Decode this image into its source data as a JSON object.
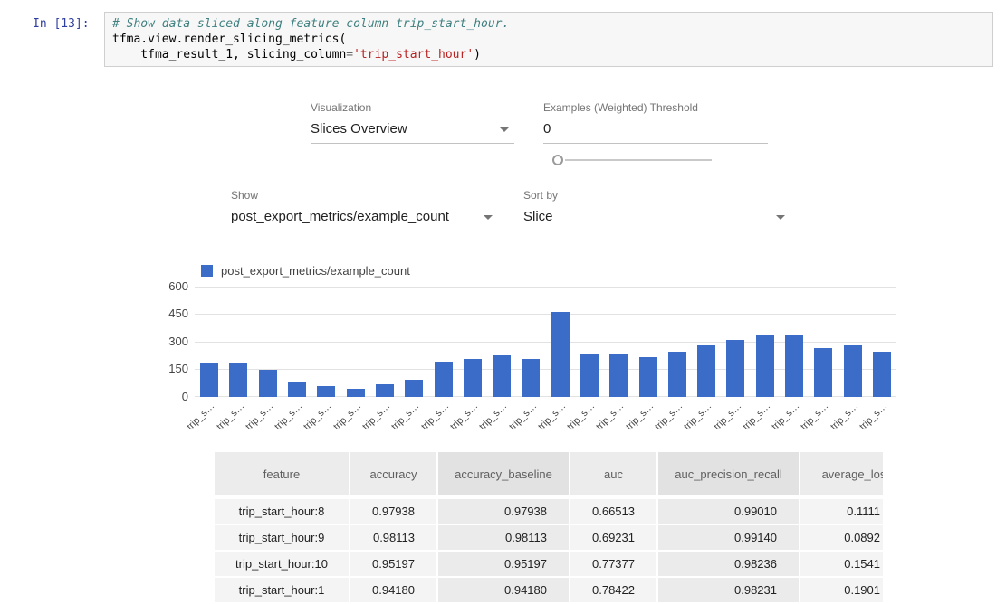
{
  "notebook": {
    "prompt": "In [13]:",
    "code": {
      "line1_comment": "# Show data sliced along feature column trip_start_hour.",
      "line2": "tfma.view.render_slicing_metrics(",
      "line3_pre": "    tfma_result_1, slicing_column",
      "line3_op": "=",
      "line3_string": "'trip_start_hour'",
      "line3_close": ")"
    }
  },
  "controls": {
    "visualization": {
      "label": "Visualization",
      "value": "Slices Overview"
    },
    "threshold": {
      "label": "Examples (Weighted) Threshold",
      "value": "0"
    },
    "show": {
      "label": "Show",
      "value": "post_export_metrics/example_count"
    },
    "sort": {
      "label": "Sort by",
      "value": "Slice"
    }
  },
  "chart_data": {
    "type": "bar",
    "legend": "post_export_metrics/example_count",
    "legend_position": "top-left",
    "bar_color": "#3b6cc7",
    "grid": true,
    "ylim": [
      0,
      600
    ],
    "yticks": [
      0,
      150,
      300,
      450,
      600
    ],
    "categories": [
      "trip_s…",
      "trip_s…",
      "trip_s…",
      "trip_s…",
      "trip_s…",
      "trip_s…",
      "trip_s…",
      "trip_s…",
      "trip_s…",
      "trip_s…",
      "trip_s…",
      "trip_s…",
      "trip_s…",
      "trip_s…",
      "trip_s…",
      "trip_s…",
      "trip_s…",
      "trip_s…",
      "trip_s…",
      "trip_s…",
      "trip_s…",
      "trip_s…",
      "trip_s…",
      "trip_s…"
    ],
    "values": [
      188,
      188,
      147,
      84,
      57,
      45,
      70,
      91,
      190,
      205,
      225,
      205,
      462,
      235,
      230,
      218,
      245,
      280,
      308,
      340,
      338,
      268,
      278,
      248
    ],
    "title": "",
    "xlabel": "",
    "ylabel": ""
  },
  "table": {
    "headers": [
      "feature",
      "accuracy",
      "accuracy_baseline",
      "auc",
      "auc_precision_recall",
      "average_los"
    ],
    "rows": [
      [
        "trip_start_hour:8",
        "0.97938",
        "0.97938",
        "0.66513",
        "0.99010",
        "0.1111"
      ],
      [
        "trip_start_hour:9",
        "0.98113",
        "0.98113",
        "0.69231",
        "0.99140",
        "0.0892"
      ],
      [
        "trip_start_hour:10",
        "0.95197",
        "0.95197",
        "0.77377",
        "0.98236",
        "0.1541"
      ],
      [
        "trip_start_hour:1",
        "0.94180",
        "0.94180",
        "0.78422",
        "0.98231",
        "0.1901"
      ]
    ]
  }
}
